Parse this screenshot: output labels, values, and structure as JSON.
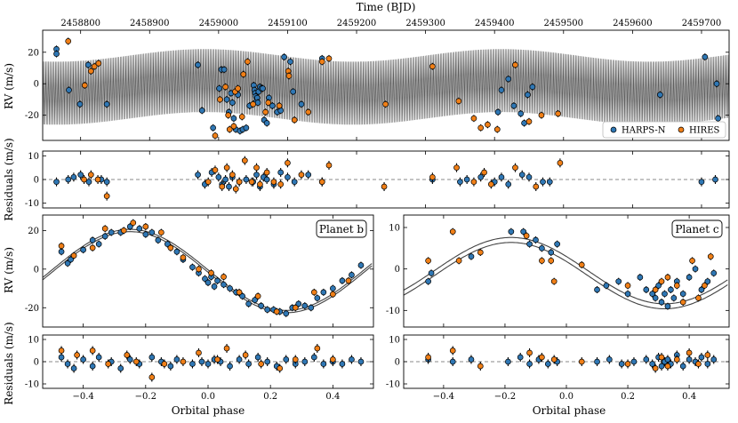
{
  "colors": {
    "harps": "#2f77b4",
    "hires": "#f07f17",
    "model": "#444444",
    "zero": "#888888"
  },
  "chart_data": [
    {
      "id": "timeseries-rv",
      "type": "scatter",
      "xlabel_top": "Time (BJD)",
      "ylabel": "RV (m/s)",
      "xlim": [
        2458745,
        2459740
      ],
      "ylim": [
        -36,
        34
      ],
      "xticks": [
        2458800,
        2458900,
        2459000,
        2459100,
        2459200,
        2459300,
        2459400,
        2459500,
        2459600,
        2459700
      ],
      "yticks": [
        20,
        0,
        -20
      ],
      "legend": {
        "placement": "bottom-right",
        "entries": [
          "HARPS-N",
          "HIRES"
        ]
      },
      "model": {
        "type": "band",
        "note_period_days": 2.0
      },
      "series": [
        {
          "name": "HARPS-N",
          "color_key": "harps",
          "x": [
            2458765,
            2458765,
            2458783,
            2458799,
            2458811,
            2458838,
            2458970,
            2458976,
            2458992,
            2459001,
            2459004,
            2459008,
            2459012,
            2459015,
            2459018,
            2459020,
            2459022,
            2459025,
            2459028,
            2459031,
            2459035,
            2459040,
            2459045,
            2459051,
            2459052,
            2459053,
            2459054,
            2459055,
            2459056,
            2459057,
            2459058,
            2459060,
            2459062,
            2459064,
            2459066,
            2459070,
            2459073,
            2459078,
            2459085,
            2459090,
            2459095,
            2459104,
            2459108,
            2459120,
            2459150,
            2459405,
            2459410,
            2459420,
            2459428,
            2459438,
            2459443,
            2459448,
            2459455,
            2459640,
            2459705,
            2459722,
            2459724
          ],
          "y": [
            22,
            19,
            -4,
            -13,
            12,
            -13,
            12,
            -17,
            -28,
            -3,
            9,
            9,
            -10,
            -18,
            -6,
            -12,
            -22,
            -29,
            -7,
            -30,
            -29,
            -28,
            -14,
            -1,
            -4,
            -6,
            -8,
            -11,
            -9,
            -12,
            -5,
            -2,
            -3,
            -3,
            -23,
            -25,
            -9,
            -14,
            -18,
            -17,
            17,
            14,
            -5,
            -13,
            16,
            -18,
            -4,
            3,
            -14,
            -19,
            -25,
            -7,
            -2,
            -7,
            17,
            0,
            -22
          ]
        },
        {
          "name": "HIRES",
          "color_key": "hires",
          "x": [
            2458782,
            2458806,
            2458815,
            2458820,
            2458826,
            2458995,
            2459002,
            2459010,
            2459014,
            2459016,
            2459022,
            2459024,
            2459028,
            2459034,
            2459036,
            2459042,
            2459050,
            2459068,
            2459072,
            2459088,
            2459101,
            2459102,
            2459110,
            2459130,
            2459150,
            2459160,
            2459242,
            2459310,
            2459348,
            2459370,
            2459380,
            2459390,
            2459404,
            2459430,
            2459450,
            2459468,
            2459492
          ],
          "y": [
            27,
            -1,
            8,
            11,
            13,
            -33,
            -10,
            -2,
            -20,
            -29,
            -27,
            -5,
            -3,
            -21,
            6,
            14,
            -13,
            -18,
            -12,
            -14,
            8,
            5,
            -23,
            -18,
            14,
            16,
            -13,
            11,
            -11,
            -22,
            -28,
            -26,
            -29,
            12,
            -24,
            -20,
            -19
          ]
        }
      ]
    },
    {
      "id": "timeseries-residuals",
      "type": "scatter",
      "ylabel": "Residuals (m/s)",
      "xlim": [
        2458745,
        2459740
      ],
      "ylim": [
        -12,
        12
      ],
      "yticks": [
        10,
        0,
        -10
      ],
      "series": [
        {
          "name": "HARPS-N",
          "color_key": "harps",
          "x": [
            2458765,
            2458782,
            2458790,
            2458800,
            2458812,
            2458830,
            2458838,
            2458970,
            2458980,
            2458990,
            2459000,
            2459005,
            2459010,
            2459015,
            2459020,
            2459030,
            2459040,
            2459050,
            2459055,
            2459060,
            2459065,
            2459070,
            2459080,
            2459090,
            2459100,
            2459110,
            2459130,
            2459150,
            2459310,
            2459350,
            2459360,
            2459380,
            2459400,
            2459410,
            2459420,
            2459440,
            2459450,
            2459470,
            2459480,
            2459700,
            2459720
          ],
          "y": [
            -1,
            0,
            1,
            2,
            -1,
            0,
            -1,
            2,
            -2,
            3,
            1,
            -2,
            0,
            -3,
            1,
            -1,
            0,
            -1,
            2,
            -3,
            1,
            0,
            -2,
            3,
            1,
            -1,
            2,
            -1,
            0,
            -1,
            0,
            1,
            -1,
            1,
            -2,
            2,
            1,
            -1,
            -1,
            -1,
            0
          ]
        },
        {
          "name": "HIRES",
          "color_key": "hires",
          "x": [
            2458805,
            2458815,
            2458825,
            2458838,
            2458985,
            2458995,
            2459005,
            2459012,
            2459020,
            2459025,
            2459030,
            2459038,
            2459048,
            2459055,
            2459060,
            2459070,
            2459080,
            2459090,
            2459100,
            2459120,
            2459150,
            2459160,
            2459240,
            2459310,
            2459345,
            2459370,
            2459385,
            2459395,
            2459430,
            2459460,
            2459495
          ],
          "y": [
            0,
            2,
            0,
            -7,
            -1,
            4,
            -3,
            5,
            2,
            -4,
            -1,
            8,
            -1,
            5,
            -2,
            3,
            -1,
            -2,
            7,
            2,
            -1,
            6,
            -3,
            1,
            5,
            -1,
            3,
            -2,
            5,
            -3,
            7
          ]
        }
      ]
    },
    {
      "id": "phase-b-rv",
      "type": "scatter",
      "annotation": "Planet b",
      "ylabel": "RV (m/s)",
      "xlim": [
        -0.53,
        0.53
      ],
      "ylim": [
        -30,
        28
      ],
      "yticks": [
        20,
        0,
        -20
      ],
      "model_amplitude": 21,
      "model_peak_phase": -0.25,
      "series": [
        {
          "name": "HARPS-N",
          "color_key": "harps",
          "x": [
            -0.47,
            -0.45,
            -0.44,
            -0.4,
            -0.37,
            -0.35,
            -0.33,
            -0.31,
            -0.28,
            -0.25,
            -0.22,
            -0.2,
            -0.18,
            -0.16,
            -0.13,
            -0.1,
            -0.08,
            -0.05,
            -0.03,
            -0.01,
            0.0,
            0.01,
            0.02,
            0.03,
            0.05,
            0.07,
            0.09,
            0.11,
            0.13,
            0.15,
            0.17,
            0.19,
            0.21,
            0.23,
            0.25,
            0.27,
            0.29,
            0.31,
            0.33,
            0.35,
            0.37,
            0.4,
            0.43,
            0.46,
            0.49
          ],
          "y": [
            9,
            3,
            5,
            10,
            15,
            13,
            17,
            19,
            19,
            22,
            21,
            18,
            19,
            15,
            13,
            9,
            5,
            1,
            -2,
            -5,
            -7,
            -4,
            -9,
            -6,
            -8,
            -10,
            -12,
            -14,
            -18,
            -16,
            -19,
            -21,
            -21,
            -22,
            -23,
            -20,
            -18,
            -19,
            -20,
            -15,
            -12,
            -10,
            -6,
            -3,
            2
          ]
        },
        {
          "name": "HIRES",
          "color_key": "hires",
          "x": [
            -0.47,
            -0.43,
            -0.37,
            -0.33,
            -0.27,
            -0.24,
            -0.2,
            -0.15,
            -0.12,
            -0.08,
            -0.03,
            0.01,
            0.05,
            0.1,
            0.16,
            0.22,
            0.28,
            0.34,
            0.4,
            0.45
          ],
          "y": [
            12,
            7,
            11,
            21,
            20,
            24,
            22,
            19,
            11,
            6,
            0,
            -2,
            -4,
            -12,
            -14,
            -22,
            -20,
            -12,
            -13,
            -6
          ]
        }
      ]
    },
    {
      "id": "phase-c-rv",
      "type": "scatter",
      "annotation": "Planet c",
      "xlim": [
        -0.53,
        0.53
      ],
      "ylim": [
        -14,
        13
      ],
      "yticks": [
        10,
        0,
        -10
      ],
      "model_amplitude": 8,
      "model_peak_phase": -0.18,
      "series": [
        {
          "name": "HARPS-N",
          "color_key": "harps",
          "x": [
            -0.45,
            -0.44,
            -0.31,
            -0.18,
            -0.14,
            -0.12,
            -0.1,
            -0.08,
            -0.05,
            -0.03,
            0.1,
            0.13,
            0.17,
            0.2,
            0.24,
            0.26,
            0.28,
            0.29,
            0.3,
            0.31,
            0.32,
            0.33,
            0.34,
            0.35,
            0.36,
            0.38,
            0.4,
            0.42,
            0.44,
            0.46,
            0.48
          ],
          "y": [
            -3,
            -1,
            3,
            9,
            9,
            6,
            7,
            5,
            4,
            6,
            -5,
            -4,
            -3,
            -6,
            -2,
            -5,
            -6,
            -7,
            -4,
            -8,
            -6,
            -9,
            -5,
            -7,
            -3,
            -6,
            -2,
            0,
            -5,
            -3,
            -1
          ]
        },
        {
          "name": "HIRES",
          "color_key": "hires",
          "x": [
            -0.45,
            -0.37,
            -0.35,
            -0.28,
            -0.13,
            -0.08,
            -0.05,
            -0.04,
            0.05,
            0.2,
            0.29,
            0.31,
            0.33,
            0.36,
            0.38,
            0.41,
            0.43,
            0.45,
            0.47
          ],
          "y": [
            2,
            9,
            2,
            4,
            8,
            2,
            2,
            -3,
            1,
            -4,
            -5,
            -3,
            -2,
            -4,
            -8,
            2,
            -7,
            -4,
            3
          ]
        }
      ]
    },
    {
      "id": "phase-b-residuals",
      "type": "scatter",
      "xlabel": "Orbital phase",
      "ylabel": "Residuals (m/s)",
      "xlim": [
        -0.53,
        0.53
      ],
      "ylim": [
        -12,
        12
      ],
      "xticks": [
        -0.4,
        -0.2,
        0.0,
        0.2,
        0.4
      ],
      "yticks": [
        10,
        0,
        -10
      ],
      "series": [
        {
          "name": "HARPS-N",
          "color_key": "harps",
          "x": [
            -0.47,
            -0.45,
            -0.43,
            -0.4,
            -0.37,
            -0.35,
            -0.31,
            -0.28,
            -0.25,
            -0.22,
            -0.18,
            -0.15,
            -0.12,
            -0.1,
            -0.05,
            -0.02,
            0.0,
            0.02,
            0.04,
            0.07,
            0.1,
            0.13,
            0.16,
            0.19,
            0.22,
            0.25,
            0.28,
            0.31,
            0.34,
            0.37,
            0.4,
            0.43,
            0.46,
            0.49
          ],
          "y": [
            2,
            -1,
            -3,
            1,
            -2,
            2,
            0,
            -3,
            1,
            -1,
            2,
            0,
            -2,
            1,
            -1,
            0,
            -1,
            1,
            0,
            -2,
            1,
            -1,
            2,
            0,
            -2,
            1,
            -1,
            0,
            2,
            -1,
            0,
            -1,
            1,
            0
          ]
        },
        {
          "name": "HIRES",
          "color_key": "hires",
          "x": [
            -0.47,
            -0.42,
            -0.37,
            -0.32,
            -0.26,
            -0.23,
            -0.18,
            -0.14,
            -0.08,
            -0.03,
            0.03,
            0.06,
            0.12,
            0.17,
            0.23,
            0.28,
            0.35,
            0.4
          ],
          "y": [
            5,
            3,
            5,
            -1,
            3,
            0,
            -7,
            -1,
            0,
            4,
            1,
            6,
            3,
            -1,
            -3,
            1,
            6,
            1
          ]
        }
      ]
    },
    {
      "id": "phase-c-residuals",
      "type": "scatter",
      "xlabel": "Orbital phase",
      "xlim": [
        -0.53,
        0.53
      ],
      "ylim": [
        -12,
        12
      ],
      "xticks": [
        -0.4,
        -0.2,
        0.0,
        0.2,
        0.4
      ],
      "series": [
        {
          "name": "HARPS-N",
          "color_key": "harps",
          "x": [
            -0.45,
            -0.37,
            -0.31,
            -0.19,
            -0.15,
            -0.12,
            -0.09,
            -0.06,
            -0.03,
            0.1,
            0.14,
            0.18,
            0.22,
            0.26,
            0.28,
            0.3,
            0.31,
            0.32,
            0.33,
            0.34,
            0.36,
            0.38,
            0.4,
            0.42,
            0.44,
            0.46,
            0.48
          ],
          "y": [
            1,
            0,
            1,
            0,
            2,
            -1,
            1,
            -1,
            0,
            0,
            1,
            -1,
            0,
            1,
            -1,
            2,
            -2,
            0,
            1,
            -1,
            3,
            -2,
            1,
            0,
            2,
            -1,
            1
          ]
        },
        {
          "name": "HIRES",
          "color_key": "hires",
          "x": [
            -0.45,
            -0.37,
            -0.28,
            -0.12,
            -0.08,
            -0.04,
            0.05,
            0.2,
            0.29,
            0.31,
            0.33,
            0.36,
            0.4,
            0.43,
            0.46
          ],
          "y": [
            2,
            5,
            -2,
            4,
            2,
            1,
            0,
            -1,
            -3,
            2,
            -2,
            1,
            4,
            -1,
            3
          ]
        }
      ]
    }
  ]
}
